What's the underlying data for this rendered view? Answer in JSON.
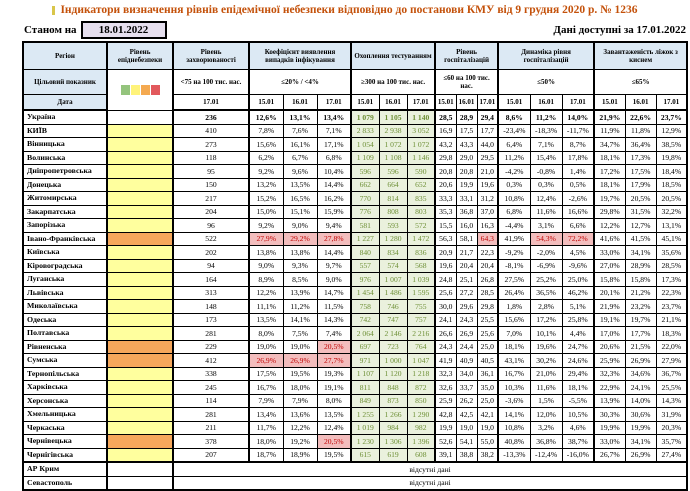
{
  "title": "Індикатори визначення рівнів епідемічної небезпеки відповідно до постанови КМУ від 9 грудня 2020 р. № 1236",
  "as_of_label": "Станом на",
  "as_of_date": "18.01.2022",
  "data_available": "Дані доступні за 17.01.2022",
  "colors": {
    "title": "#C4510A",
    "title_marker": "#D9C64A",
    "header_bg": "#DCE9F4",
    "asof_box_bg": "#E6DFEE",
    "epid_yellow": "#FFFF9E",
    "epid_orange": "#F6A75B",
    "test_bg": "#EAF1DD",
    "test_text": "#6D8F35",
    "highlight_bg": "#F3BDBD",
    "highlight_text": "#C00000",
    "legend": [
      "#94C47D",
      "#FFF37A",
      "#F4A950",
      "#E2595C"
    ]
  },
  "table": {
    "header": {
      "region": "Регіон",
      "epid": "Рівень епіднебезпеки",
      "incidence": "Рівень захворюваності",
      "coef": "Коефіцієнт виявлення випадків інфікування",
      "test": "Охоплення тестуванням",
      "hosp": "Рівень госпіталізацій",
      "dyn": "Динаміка рівня госпіталізацій",
      "beds": "Завантаженість ліжок з киснем"
    },
    "target_label": "Цільовий показник",
    "date_label": "Дата",
    "thresholds": {
      "incidence": "<75 на 100 тис. нас.",
      "coef": "≤20% / <4%",
      "test": "≥300 на 100 тис. нас.",
      "hosp": "≤60 на 100 тис. нас.",
      "dyn": "≤50%",
      "beds": "≤65%"
    },
    "incidence_date": "17.01",
    "dates": [
      "15.01",
      "16.01",
      "17.01"
    ],
    "no_data_text": "відсутні дані",
    "rows": [
      {
        "region": "Україна",
        "bold": true,
        "epid": "none",
        "inc": "236",
        "coef": [
          "12,6%",
          "13,1%",
          "13,4%"
        ],
        "test": [
          "1 079",
          "1 105",
          "1 140"
        ],
        "hosp": [
          "28,5",
          "28,9",
          "29,4"
        ],
        "dyn": [
          "8,6%",
          "11,2%",
          "14,0%"
        ],
        "beds": [
          "21,9%",
          "22,6%",
          "23,7%"
        ]
      },
      {
        "region": "КИЇВ",
        "epid": "yellow",
        "inc": "410",
        "coef": [
          "7,8%",
          "7,6%",
          "7,1%"
        ],
        "test": [
          "2 833",
          "2 938",
          "3 052"
        ],
        "hosp": [
          "16,9",
          "17,5",
          "17,7"
        ],
        "dyn": [
          "-23,4%",
          "-18,3%",
          "-11,7%"
        ],
        "beds": [
          "11,9%",
          "11,8%",
          "12,9%"
        ]
      },
      {
        "region": "Вінницька",
        "epid": "yellow",
        "inc": "273",
        "coef": [
          "15,6%",
          "16,1%",
          "17,1%"
        ],
        "test": [
          "1 054",
          "1 072",
          "1 072"
        ],
        "hosp": [
          "43,2",
          "43,3",
          "44,0"
        ],
        "dyn": [
          "6,4%",
          "7,1%",
          "8,7%"
        ],
        "beds": [
          "34,7%",
          "36,4%",
          "38,5%"
        ]
      },
      {
        "region": "Волинська",
        "epid": "yellow",
        "inc": "118",
        "coef": [
          "6,2%",
          "6,7%",
          "6,8%"
        ],
        "test": [
          "1 109",
          "1 108",
          "1 146"
        ],
        "hosp": [
          "29,8",
          "29,0",
          "29,5"
        ],
        "dyn": [
          "11,2%",
          "15,4%",
          "17,8%"
        ],
        "beds": [
          "18,1%",
          "17,3%",
          "19,8%"
        ]
      },
      {
        "region": "Дніпропетровська",
        "epid": "yellow",
        "inc": "95",
        "coef": [
          "9,2%",
          "9,6%",
          "10,4%"
        ],
        "test": [
          "596",
          "596",
          "590"
        ],
        "hosp": [
          "20,8",
          "20,8",
          "21,0"
        ],
        "dyn": [
          "-4,2%",
          "-0,8%",
          "1,4%"
        ],
        "beds": [
          "17,2%",
          "17,5%",
          "18,4%"
        ]
      },
      {
        "region": "Донецька",
        "epid": "yellow",
        "inc": "150",
        "coef": [
          "13,2%",
          "13,5%",
          "14,4%"
        ],
        "test": [
          "662",
          "664",
          "652"
        ],
        "hosp": [
          "20,6",
          "19,9",
          "19,6"
        ],
        "dyn": [
          "0,3%",
          "0,3%",
          "0,5%"
        ],
        "beds": [
          "18,1%",
          "17,9%",
          "18,5%"
        ]
      },
      {
        "region": "Житомирська",
        "epid": "yellow",
        "inc": "217",
        "coef": [
          "15,2%",
          "16,5%",
          "16,2%"
        ],
        "test": [
          "770",
          "814",
          "835"
        ],
        "hosp": [
          "33,3",
          "33,1",
          "31,2"
        ],
        "dyn": [
          "10,8%",
          "12,4%",
          "-2,6%"
        ],
        "beds": [
          "19,7%",
          "20,5%",
          "20,5%"
        ]
      },
      {
        "region": "Закарпатська",
        "epid": "yellow",
        "inc": "204",
        "coef": [
          "15,0%",
          "15,1%",
          "15,9%"
        ],
        "test": [
          "776",
          "808",
          "803"
        ],
        "hosp": [
          "35,3",
          "36,8",
          "37,0"
        ],
        "dyn": [
          "6,8%",
          "11,6%",
          "16,6%"
        ],
        "beds": [
          "29,8%",
          "31,5%",
          "32,2%"
        ]
      },
      {
        "region": "Запорізька",
        "epid": "yellow",
        "inc": "96",
        "coef": [
          "9,2%",
          "9,0%",
          "9,4%"
        ],
        "test": [
          "581",
          "593",
          "572"
        ],
        "hosp": [
          "15,5",
          "16,0",
          "16,3"
        ],
        "dyn": [
          "-4,4%",
          "3,1%",
          "6,6%"
        ],
        "beds": [
          "12,2%",
          "12,7%",
          "13,1%"
        ]
      },
      {
        "region": "Івано-Франківська",
        "epid": "orange",
        "inc": "522",
        "coef": [
          "27,9%",
          "29,2%",
          "27,8%"
        ],
        "hl_coef": [
          1,
          1,
          1
        ],
        "test": [
          "1 227",
          "1 280",
          "1 472"
        ],
        "hosp": [
          "56,3",
          "58,1",
          "64,3"
        ],
        "hl_hosp": [
          0,
          0,
          1
        ],
        "dyn": [
          "41,9%",
          "54,3%",
          "72,2%"
        ],
        "hl_dyn": [
          0,
          1,
          1
        ],
        "beds": [
          "41,6%",
          "41,5%",
          "45,1%"
        ]
      },
      {
        "region": "Київська",
        "epid": "yellow",
        "inc": "202",
        "coef": [
          "13,8%",
          "13,8%",
          "14,4%"
        ],
        "test": [
          "840",
          "834",
          "836"
        ],
        "hosp": [
          "20,9",
          "21,7",
          "22,3"
        ],
        "dyn": [
          "-9,2%",
          "-2,0%",
          "4,5%"
        ],
        "beds": [
          "33,0%",
          "34,1%",
          "35,6%"
        ]
      },
      {
        "region": "Кіровоградська",
        "epid": "yellow",
        "inc": "94",
        "coef": [
          "9,0%",
          "9,3%",
          "9,7%"
        ],
        "test": [
          "557",
          "574",
          "568"
        ],
        "hosp": [
          "19,6",
          "20,4",
          "20,4"
        ],
        "dyn": [
          "-8,1%",
          "-6,9%",
          "-9,6%"
        ],
        "beds": [
          "27,0%",
          "28,9%",
          "28,5%"
        ]
      },
      {
        "region": "Луганська",
        "epid": "yellow",
        "inc": "164",
        "coef": [
          "8,9%",
          "8,5%",
          "9,0%"
        ],
        "test": [
          "976",
          "1 007",
          "1 039"
        ],
        "hosp": [
          "24,8",
          "25,1",
          "26,8"
        ],
        "dyn": [
          "27,5%",
          "25,2%",
          "25,0%"
        ],
        "beds": [
          "15,8%",
          "15,8%",
          "17,3%"
        ]
      },
      {
        "region": "Львівська",
        "epid": "yellow",
        "inc": "313",
        "coef": [
          "12,2%",
          "13,9%",
          "14,7%"
        ],
        "test": [
          "1 454",
          "1 486",
          "1 595"
        ],
        "hosp": [
          "25,6",
          "27,2",
          "28,5"
        ],
        "dyn": [
          "26,4%",
          "36,5%",
          "46,2%"
        ],
        "beds": [
          "20,1%",
          "21,2%",
          "22,3%"
        ]
      },
      {
        "region": "Миколаївська",
        "epid": "yellow",
        "inc": "148",
        "coef": [
          "11,1%",
          "11,2%",
          "11,5%"
        ],
        "test": [
          "758",
          "746",
          "755"
        ],
        "hosp": [
          "30,0",
          "29,6",
          "29,8"
        ],
        "dyn": [
          "1,8%",
          "2,8%",
          "5,1%"
        ],
        "beds": [
          "21,9%",
          "23,2%",
          "23,7%"
        ]
      },
      {
        "region": "Одеська",
        "epid": "yellow",
        "inc": "173",
        "coef": [
          "13,5%",
          "14,1%",
          "14,3%"
        ],
        "test": [
          "742",
          "747",
          "757"
        ],
        "hosp": [
          "24,1",
          "24,3",
          "25,5"
        ],
        "dyn": [
          "15,6%",
          "17,2%",
          "25,8%"
        ],
        "beds": [
          "19,1%",
          "19,7%",
          "21,1%"
        ]
      },
      {
        "region": "Полтавська",
        "epid": "yellow",
        "inc": "281",
        "coef": [
          "8,0%",
          "7,5%",
          "7,4%"
        ],
        "test": [
          "2 064",
          "2 146",
          "2 216"
        ],
        "hosp": [
          "26,6",
          "26,9",
          "25,6"
        ],
        "dyn": [
          "7,0%",
          "10,1%",
          "4,4%"
        ],
        "beds": [
          "17,0%",
          "17,7%",
          "18,3%"
        ]
      },
      {
        "region": "Рівненська",
        "epid": "orange",
        "inc": "229",
        "coef": [
          "19,0%",
          "19,0%",
          "20,5%"
        ],
        "hl_coef": [
          0,
          0,
          1
        ],
        "test": [
          "697",
          "723",
          "764"
        ],
        "hosp": [
          "24,3",
          "24,4",
          "25,0"
        ],
        "dyn": [
          "18,1%",
          "19,6%",
          "24,7%"
        ],
        "beds": [
          "20,6%",
          "21,5%",
          "22,0%"
        ]
      },
      {
        "region": "Сумська",
        "epid": "orange",
        "inc": "412",
        "coef": [
          "26,9%",
          "26,9%",
          "27,7%"
        ],
        "hl_coef": [
          1,
          1,
          1
        ],
        "test": [
          "971",
          "1 000",
          "1 047"
        ],
        "hosp": [
          "41,9",
          "40,9",
          "40,5"
        ],
        "dyn": [
          "43,1%",
          "30,2%",
          "24,6%"
        ],
        "beds": [
          "25,9%",
          "26,9%",
          "27,9%"
        ]
      },
      {
        "region": "Тернопільська",
        "epid": "yellow",
        "inc": "338",
        "coef": [
          "17,5%",
          "19,5%",
          "19,3%"
        ],
        "test": [
          "1 107",
          "1 120",
          "1 218"
        ],
        "hosp": [
          "32,3",
          "34,0",
          "36,1"
        ],
        "dyn": [
          "16,7%",
          "21,0%",
          "29,4%"
        ],
        "beds": [
          "32,3%",
          "34,6%",
          "36,7%"
        ]
      },
      {
        "region": "Харківська",
        "epid": "yellow",
        "inc": "245",
        "coef": [
          "16,7%",
          "18,0%",
          "19,1%"
        ],
        "test": [
          "811",
          "848",
          "872"
        ],
        "hosp": [
          "32,6",
          "33,7",
          "35,0"
        ],
        "dyn": [
          "10,3%",
          "11,6%",
          "18,1%"
        ],
        "beds": [
          "22,9%",
          "24,1%",
          "25,5%"
        ]
      },
      {
        "region": "Херсонська",
        "epid": "yellow",
        "inc": "114",
        "coef": [
          "7,9%",
          "7,9%",
          "8,0%"
        ],
        "test": [
          "849",
          "873",
          "850"
        ],
        "hosp": [
          "25,9",
          "26,2",
          "25,0"
        ],
        "dyn": [
          "-3,6%",
          "1,5%",
          "-5,5%"
        ],
        "beds": [
          "13,9%",
          "14,0%",
          "14,3%"
        ]
      },
      {
        "region": "Хмельницька",
        "epid": "yellow",
        "inc": "281",
        "coef": [
          "13,4%",
          "13,6%",
          "13,5%"
        ],
        "test": [
          "1 255",
          "1 266",
          "1 290"
        ],
        "hosp": [
          "42,8",
          "42,5",
          "42,1"
        ],
        "dyn": [
          "14,1%",
          "12,0%",
          "10,5%"
        ],
        "beds": [
          "30,3%",
          "30,6%",
          "31,9%"
        ]
      },
      {
        "region": "Черкаська",
        "epid": "yellow",
        "inc": "211",
        "coef": [
          "11,7%",
          "12,2%",
          "12,4%"
        ],
        "test": [
          "1 019",
          "984",
          "982"
        ],
        "hosp": [
          "19,9",
          "19,0",
          "19,0"
        ],
        "dyn": [
          "10,8%",
          "3,2%",
          "4,6%"
        ],
        "beds": [
          "19,9%",
          "19,9%",
          "20,3%"
        ]
      },
      {
        "region": "Чернівецька",
        "epid": "orange",
        "inc": "378",
        "coef": [
          "18,0%",
          "19,2%",
          "20,5%"
        ],
        "hl_coef": [
          0,
          0,
          1
        ],
        "test": [
          "1 230",
          "1 306",
          "1 396"
        ],
        "hosp": [
          "52,6",
          "54,1",
          "55,0"
        ],
        "dyn": [
          "40,8%",
          "36,8%",
          "38,7%"
        ],
        "beds": [
          "33,0%",
          "34,1%",
          "35,7%"
        ]
      },
      {
        "region": "Чернігівська",
        "epid": "yellow",
        "inc": "207",
        "coef": [
          "18,7%",
          "18,9%",
          "19,5%"
        ],
        "test": [
          "615",
          "619",
          "608"
        ],
        "hosp": [
          "39,1",
          "38,8",
          "38,2"
        ],
        "dyn": [
          "-13,3%",
          "-12,4%",
          "-16,0%"
        ],
        "beds": [
          "26,7%",
          "26,9%",
          "27,4%"
        ]
      },
      {
        "region": "АР Крим",
        "no_data": true
      },
      {
        "region": "Севастополь",
        "no_data": true
      }
    ]
  }
}
